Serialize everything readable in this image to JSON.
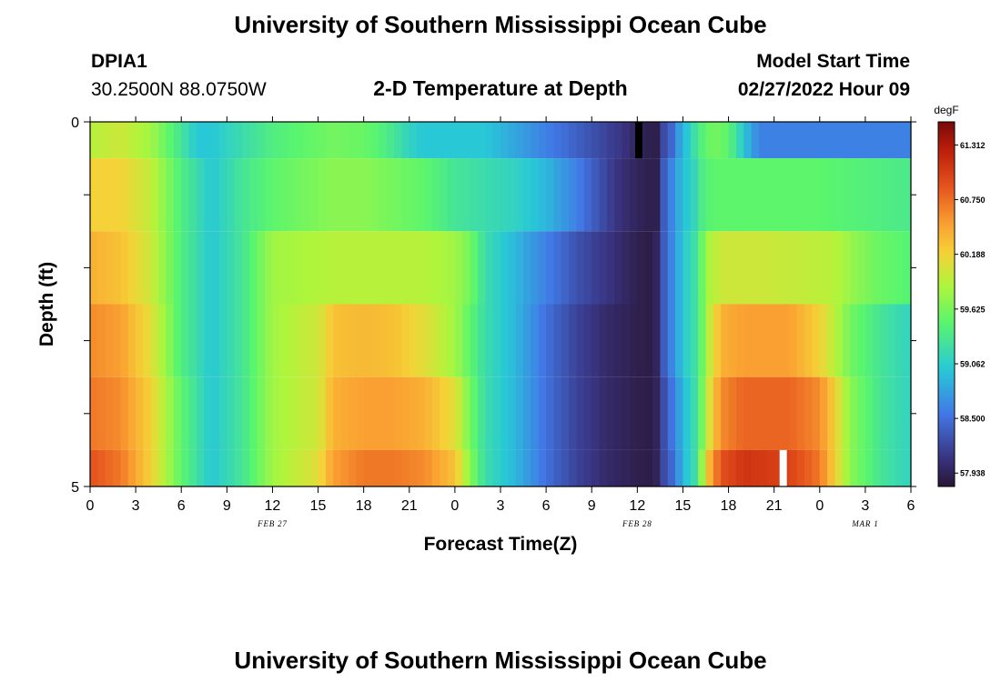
{
  "page": {
    "title": "University of Southern Mississippi Ocean Cube",
    "title_repeat": "University of Southern Mississippi Ocean Cube",
    "station": "DPIA1",
    "coords": "30.2500N  88.0750W",
    "plot_title": "2-D Temperature at Depth",
    "model_start_label": "Model Start Time",
    "model_start_value": "02/27/2022 Hour 09"
  },
  "chart_data": {
    "type": "heatmap",
    "title": "2-D Temperature at Depth",
    "xlabel": "Forecast Time(Z)",
    "ylabel": "Depth (ft)",
    "x_tick_labels": [
      "0",
      "3",
      "6",
      "9",
      "12",
      "15",
      "18",
      "21",
      "0",
      "3",
      "6",
      "9",
      "12",
      "15",
      "18",
      "21",
      "0",
      "3",
      "6"
    ],
    "x_hours": [
      0,
      3,
      6,
      9,
      12,
      15,
      18,
      21,
      24,
      27,
      30,
      33,
      36,
      39,
      42,
      45,
      48,
      51,
      54
    ],
    "x_range_hours": [
      0,
      54
    ],
    "date_labels": [
      {
        "hour": 12,
        "label": "FEB 27"
      },
      {
        "hour": 36,
        "label": "FEB 28"
      },
      {
        "hour": 51,
        "label": "MAR 1"
      }
    ],
    "y_tick_labels": [
      "0",
      "5"
    ],
    "y_range_ft": [
      0,
      5
    ],
    "depth_levels_ft": [
      0.25,
      1,
      2,
      3,
      4,
      4.75
    ],
    "depth_level_edges_ft": [
      0,
      0.5,
      1.5,
      2.5,
      3.5,
      4.5,
      5
    ],
    "colorbar": {
      "units": "degF",
      "min": 57.8,
      "max": 61.55,
      "tick_values": [
        61.312,
        60.75,
        60.188,
        59.625,
        59.062,
        58.5,
        57.938
      ],
      "tick_labels": [
        "61.312",
        "60.750",
        "60.188",
        "59.625",
        "59.062",
        "58.500",
        "57.938"
      ]
    },
    "series": [
      {
        "name": "0 ft",
        "hours": [
          0,
          2,
          4,
          6,
          7,
          8,
          10,
          12,
          14,
          16,
          18,
          19,
          20,
          21,
          22,
          24,
          26,
          28,
          30,
          32,
          33,
          34,
          35,
          36,
          36.8,
          37.2,
          37.6,
          38.4,
          38.8,
          39.5,
          40,
          40.6,
          41.5,
          42.3,
          43,
          44,
          48,
          51,
          54
        ],
        "values": [
          59.9,
          60,
          59.8,
          59.3,
          59.0,
          59.0,
          59.2,
          59.4,
          59.5,
          59.6,
          59.55,
          59.45,
          59.3,
          59.1,
          59.0,
          59.0,
          59.0,
          58.8,
          58.6,
          58.4,
          58.3,
          58.2,
          58.1,
          57.95,
          57.9,
          57.85,
          58.2,
          58.5,
          58.8,
          59.1,
          59.35,
          59.55,
          59.6,
          59.35,
          59.0,
          58.6,
          58.6,
          58.6,
          58.6
        ]
      },
      {
        "name": "1 ft",
        "hours": [
          0,
          2,
          4,
          6,
          8,
          10,
          12,
          14,
          16,
          18,
          20,
          22,
          24,
          26,
          28,
          30,
          32,
          33,
          34,
          35,
          36,
          36.8,
          37.2,
          37.6,
          38.4,
          39,
          40,
          40.3,
          41,
          44,
          47,
          48,
          50,
          52,
          54
        ],
        "values": [
          60.2,
          60.2,
          59.95,
          59.4,
          59.0,
          59.3,
          59.5,
          59.6,
          59.7,
          59.7,
          59.6,
          59.5,
          59.3,
          59.2,
          59.1,
          58.9,
          58.6,
          58.4,
          58.2,
          58.05,
          57.95,
          57.9,
          57.85,
          58.3,
          58.7,
          58.95,
          59.2,
          59.4,
          59.5,
          59.5,
          59.5,
          59.5,
          59.45,
          59.4,
          59.35
        ]
      },
      {
        "name": "2 ft",
        "hours": [
          0,
          2,
          4,
          6,
          8,
          10,
          12,
          14,
          16,
          18,
          20,
          22,
          24,
          25,
          26,
          28,
          30,
          32,
          34,
          35,
          36,
          36.8,
          37.2,
          37.6,
          38.4,
          39,
          40,
          40.5,
          41.5,
          44,
          47,
          49,
          50.5,
          52,
          54
        ],
        "values": [
          60.4,
          60.3,
          60.0,
          59.4,
          59.0,
          59.3,
          59.8,
          59.85,
          59.9,
          59.9,
          59.9,
          59.9,
          59.8,
          59.6,
          59.2,
          58.9,
          58.6,
          58.3,
          58.1,
          58.0,
          57.9,
          57.88,
          57.9,
          58.3,
          58.7,
          59.0,
          59.3,
          59.8,
          60.0,
          60.0,
          59.95,
          59.9,
          59.7,
          59.55,
          59.45
        ]
      },
      {
        "name": "3 ft",
        "hours": [
          0,
          2,
          4,
          6,
          8,
          10,
          12,
          14,
          15,
          16,
          18,
          20,
          22,
          24,
          25,
          26,
          28,
          30,
          32,
          34,
          35,
          36,
          36.8,
          37.2,
          37.6,
          38.4,
          39,
          40,
          40.5,
          41.5,
          43,
          46,
          48,
          49,
          50,
          52,
          54
        ],
        "values": [
          60.6,
          60.5,
          60.1,
          59.4,
          59.0,
          59.3,
          59.8,
          59.95,
          60.0,
          60.3,
          60.35,
          60.3,
          60.1,
          59.8,
          59.5,
          59.2,
          58.9,
          58.5,
          58.2,
          58.0,
          57.95,
          57.9,
          57.88,
          57.9,
          58.3,
          58.7,
          59.0,
          59.3,
          59.8,
          60.4,
          60.5,
          60.5,
          60.2,
          59.9,
          59.6,
          59.3,
          59.1
        ]
      },
      {
        "name": "4 ft",
        "hours": [
          0,
          2,
          4,
          6,
          8,
          10,
          12,
          14,
          15,
          16,
          18,
          20,
          22,
          24,
          25,
          26,
          28,
          30,
          32,
          34,
          35,
          36,
          36.8,
          37.2,
          37.6,
          38.4,
          39,
          40,
          40.5,
          41.5,
          43,
          46,
          48,
          49,
          50,
          52,
          54
        ],
        "values": [
          60.7,
          60.6,
          60.2,
          59.5,
          59.0,
          59.3,
          59.8,
          59.95,
          60.0,
          60.4,
          60.5,
          60.5,
          60.4,
          60.1,
          59.6,
          59.2,
          58.9,
          58.5,
          58.2,
          58.0,
          57.95,
          57.9,
          57.88,
          57.9,
          58.2,
          58.6,
          58.9,
          59.3,
          59.9,
          60.6,
          60.8,
          60.8,
          60.6,
          60.2,
          59.7,
          59.3,
          59.1
        ]
      },
      {
        "name": "4.75 ft",
        "hours": [
          0,
          2,
          4,
          6,
          8,
          10,
          12,
          14,
          15,
          16,
          18,
          20,
          22,
          24,
          25,
          26,
          28,
          30,
          32,
          34,
          35,
          36,
          36.8,
          37.2,
          37.6,
          38.4,
          39,
          40,
          40.5,
          41.5,
          43,
          46,
          48,
          49,
          50,
          52,
          54
        ],
        "values": [
          60.9,
          60.7,
          60.2,
          59.5,
          59.0,
          59.3,
          59.8,
          60.0,
          60.1,
          60.5,
          60.7,
          60.7,
          60.6,
          60.3,
          59.7,
          59.2,
          58.9,
          58.5,
          58.2,
          58.0,
          57.95,
          57.9,
          57.88,
          57.9,
          58.2,
          58.5,
          58.9,
          59.3,
          60.2,
          60.9,
          61.1,
          61.0,
          60.7,
          60.2,
          59.7,
          59.3,
          59.1
        ]
      }
    ],
    "annotations": [
      {
        "type": "missing-marker",
        "color": "#000000",
        "hour": 36.1,
        "depth_ft": [
          0,
          0.5
        ]
      },
      {
        "type": "missing-marker",
        "color": "#ffffff",
        "hour": 45.6,
        "depth_ft": [
          4.5,
          5
        ]
      }
    ]
  }
}
